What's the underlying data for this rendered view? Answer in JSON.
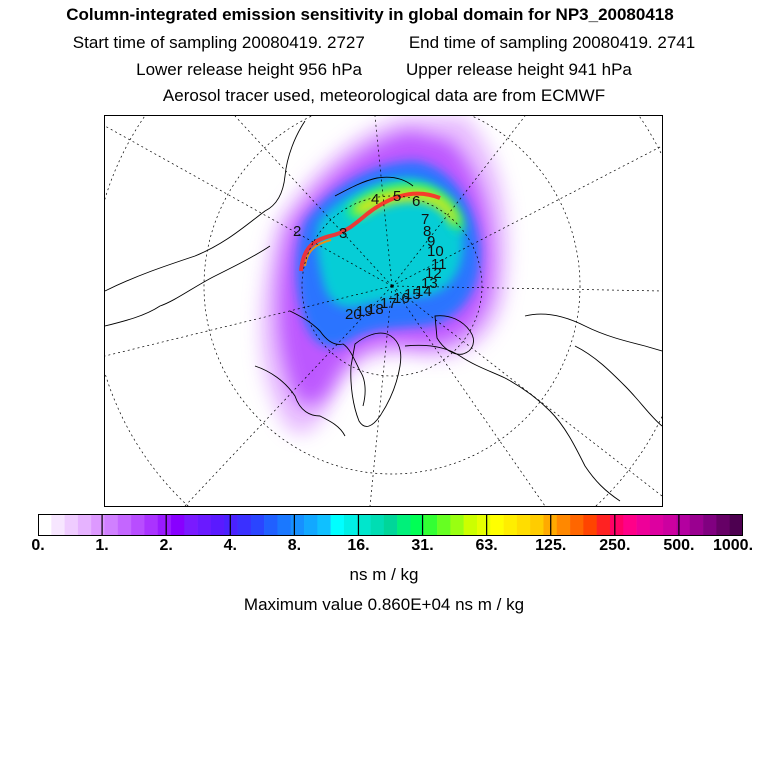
{
  "header": {
    "title": "Column-integrated emission sensitivity in global domain for NP3_20080418",
    "start_label": "Start time of sampling 20080419.  2727",
    "end_label": "End time of sampling 20080419.  2741",
    "lower_label": "Lower release height  956 hPa",
    "upper_label": "Upper release height  941 hPa",
    "tracer_label": "Aerosol tracer used, meteorological data are from ECMWF"
  },
  "colorbar": {
    "tick_labels": [
      "0.",
      "1.",
      "2.",
      "4.",
      "8.",
      "16.",
      "31.",
      "63.",
      "125.",
      "250.",
      "500.",
      "1000."
    ],
    "colors": [
      "#ffffff",
      "#f7e6ff",
      "#efccff",
      "#e6b3ff",
      "#dd99ff",
      "#d080ff",
      "#c466ff",
      "#b84dff",
      "#aa33ff",
      "#9a1aff",
      "#8800ff",
      "#7a1aff",
      "#6a1aff",
      "#5a1aff",
      "#4a22ff",
      "#3a30ff",
      "#2a45ff",
      "#2060ff",
      "#1a78ff",
      "#1690ff",
      "#12a8ff",
      "#10c0ff",
      "#00ffff",
      "#00f0e6",
      "#00e6cc",
      "#00ddb3",
      "#00d699",
      "#00f07a",
      "#00ff55",
      "#33ff33",
      "#66ff22",
      "#99ff11",
      "#ccff00",
      "#e6ff00",
      "#ffff00",
      "#ffee00",
      "#ffdd00",
      "#ffcc00",
      "#ffaa00",
      "#ff8800",
      "#ff6600",
      "#ff4400",
      "#ff2222",
      "#ff0066",
      "#ff0088",
      "#ee0099",
      "#dd00a0",
      "#cc00a0",
      "#b400a0",
      "#9a0090",
      "#800080",
      "#660066",
      "#4d0050"
    ],
    "units": "ns m / kg",
    "max_value_text": "Maximum value  0.860E+04 ns m / kg"
  },
  "map": {
    "track_labels": [
      "2",
      "3",
      "4",
      "5",
      "6",
      "7",
      "8",
      "9",
      "10",
      "11",
      "12",
      "13",
      "14",
      "15",
      "16",
      "17",
      "18",
      "19",
      "20"
    ]
  }
}
